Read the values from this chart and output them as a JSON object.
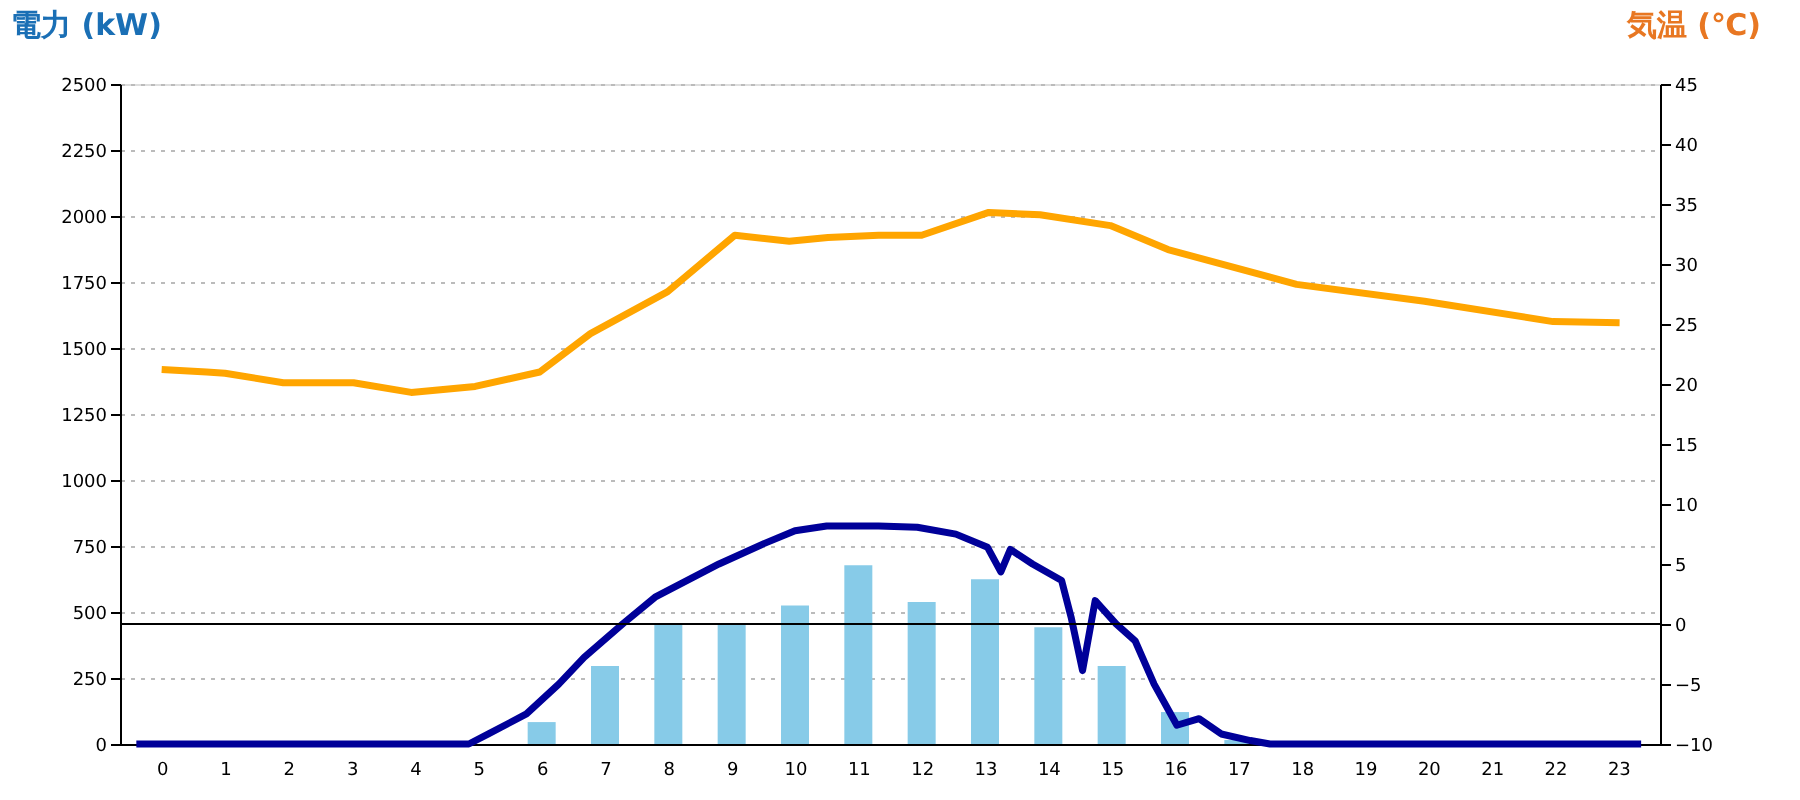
{
  "chart_data": {
    "type": "bar",
    "ylabel": "電力 (kW)",
    "y2label": "気温 (℃)",
    "x": [
      0,
      1,
      2,
      3,
      4,
      5,
      6,
      7,
      8,
      9,
      10,
      11,
      12,
      13,
      14,
      15,
      16,
      17,
      18,
      19,
      20,
      21,
      22,
      23
    ],
    "xlim": [
      -0.5,
      23.5
    ],
    "xticks": [
      0,
      1,
      2,
      3,
      4,
      5,
      6,
      7,
      8,
      9,
      10,
      11,
      12,
      13,
      14,
      15,
      16,
      17,
      18,
      19,
      20,
      21,
      22,
      23
    ],
    "ylim": [
      0,
      2500
    ],
    "yticks": [
      0,
      250,
      500,
      750,
      1000,
      1250,
      1500,
      1750,
      2000,
      2250,
      2500
    ],
    "y2lim": [
      -10,
      45
    ],
    "y2ticks": [
      -10,
      -5,
      0,
      5,
      10,
      15,
      20,
      25,
      30,
      35,
      40,
      45
    ],
    "grid": "y",
    "ref_lines": [
      {
        "axis": "y2",
        "value": 0,
        "color": "#000000"
      }
    ],
    "series": [
      {
        "type": "bar",
        "color": "#87cbe8",
        "values": [
          0,
          0,
          0,
          0,
          0,
          0,
          83,
          295,
          455,
          455,
          525,
          677,
          538,
          624,
          442,
          295,
          121,
          15,
          0,
          0,
          0,
          0,
          0,
          0
        ]
      },
      {
        "type": "line",
        "color": "#000099",
        "x": [
          -0.4,
          4.85,
          5.16,
          5.76,
          6.27,
          6.67,
          7.28,
          7.79,
          8.39,
          8.8,
          9.5,
          10.0,
          10.5,
          11.32,
          11.93,
          12.54,
          13.04,
          13.25,
          13.4,
          13.75,
          14.21,
          14.36,
          14.54,
          14.74,
          15.07,
          15.37,
          15.67,
          16.03,
          16.38,
          16.73,
          17.19,
          17.5,
          23.36
        ],
        "values": [
          0,
          0,
          38,
          114,
          227,
          328,
          455,
          556,
          631,
          682,
          758,
          808,
          826,
          826,
          821,
          795,
          745,
          652,
          737,
          682,
          619,
          480,
          278,
          543,
          455,
          391,
          227,
          71,
          96,
          38,
          13,
          0,
          0
        ]
      },
      {
        "type": "line",
        "axis": "y2",
        "color": "#ffa500",
        "x": [
          0,
          0.71,
          1.0,
          1.92,
          3.03,
          3.94,
          4.95,
          5.97,
          6.77,
          7.99,
          9.05,
          9.91,
          10.52,
          11.32,
          12.0,
          13.06,
          13.87,
          14.98,
          15.89,
          17.92,
          19.94,
          21.97,
          23.02
        ],
        "values": [
          21.2,
          21.0,
          20.9,
          20.1,
          20.1,
          19.3,
          19.8,
          21.0,
          24.2,
          27.7,
          32.4,
          31.9,
          32.2,
          32.4,
          32.4,
          34.3,
          34.1,
          33.2,
          31.2,
          28.3,
          26.9,
          25.2,
          25.1
        ]
      }
    ]
  }
}
